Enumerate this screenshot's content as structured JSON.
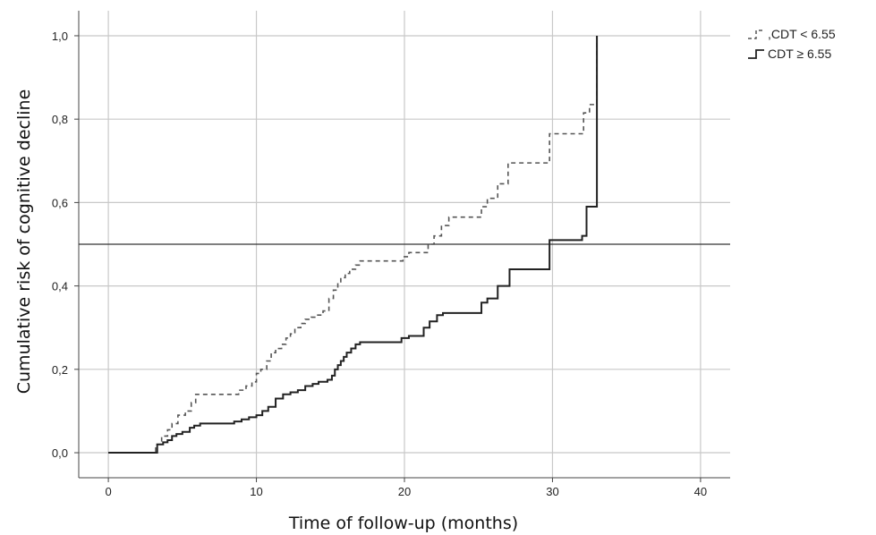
{
  "chart_data": {
    "type": "line",
    "step": true,
    "xlabel": "Time of follow-up (months)",
    "ylabel": "Cumulative risk of cognitive decline",
    "xlim": [
      -2,
      42
    ],
    "ylim": [
      -0.06,
      1.06
    ],
    "x_ticks": [
      0,
      10,
      20,
      30,
      40
    ],
    "x_tick_labels": [
      "0",
      "10",
      "20",
      "30",
      "40"
    ],
    "y_ticks": [
      0.0,
      0.2,
      0.4,
      0.6,
      0.8,
      1.0
    ],
    "y_tick_labels": [
      "0,0",
      "0,2",
      "0,4",
      "0,6",
      "0,8",
      "1,0"
    ],
    "grid": true,
    "reference_line_y": 0.5,
    "legend_position": "top-right",
    "series": [
      {
        "name": ",CDT < 6.55",
        "line_style": "dashed",
        "color": "#555555",
        "x": [
          0,
          3.0,
          3.2,
          3.6,
          4.0,
          4.3,
          4.7,
          5.2,
          5.6,
          5.9,
          8.3,
          8.8,
          9.3,
          9.7,
          10.0,
          10.3,
          10.7,
          11.0,
          11.3,
          11.7,
          12.0,
          12.3,
          12.6,
          13.0,
          13.3,
          13.7,
          14.0,
          14.5,
          14.9,
          15.2,
          15.5,
          15.7,
          16.0,
          16.3,
          16.7,
          17.0,
          17.6,
          19.9,
          20.3,
          21.0,
          21.6,
          22.0,
          22.5,
          23.0,
          25.2,
          25.6,
          26.3,
          27.0,
          29.8,
          30.2,
          32.1,
          32.5,
          33.0,
          33.0
        ],
        "y": [
          0,
          0,
          0.02,
          0.04,
          0.055,
          0.07,
          0.09,
          0.1,
          0.12,
          0.14,
          0.14,
          0.15,
          0.16,
          0.17,
          0.19,
          0.2,
          0.22,
          0.24,
          0.25,
          0.26,
          0.275,
          0.285,
          0.3,
          0.31,
          0.32,
          0.325,
          0.33,
          0.34,
          0.37,
          0.39,
          0.405,
          0.42,
          0.43,
          0.44,
          0.45,
          0.46,
          0.46,
          0.47,
          0.48,
          0.48,
          0.5,
          0.52,
          0.545,
          0.565,
          0.59,
          0.61,
          0.645,
          0.695,
          0.765,
          0.765,
          0.815,
          0.835,
          0.835,
          1.0
        ]
      },
      {
        "name": "CDT ≥ 6.55",
        "line_style": "solid",
        "color": "#222222",
        "x": [
          0,
          3.0,
          3.3,
          3.7,
          4.0,
          4.3,
          4.6,
          5.0,
          5.5,
          5.8,
          6.2,
          8.5,
          9.0,
          9.5,
          10.0,
          10.4,
          10.8,
          11.3,
          11.8,
          12.3,
          12.8,
          13.3,
          13.8,
          14.2,
          14.8,
          15.1,
          15.3,
          15.5,
          15.7,
          15.9,
          16.1,
          16.4,
          16.7,
          17.0,
          17.5,
          19.8,
          20.3,
          21.3,
          21.7,
          22.2,
          22.6,
          25.2,
          25.6,
          26.3,
          27.1,
          29.8,
          32.0,
          32.3,
          33.0,
          33.0
        ],
        "y": [
          0,
          0,
          0.02,
          0.025,
          0.03,
          0.04,
          0.045,
          0.05,
          0.06,
          0.065,
          0.07,
          0.075,
          0.08,
          0.085,
          0.09,
          0.1,
          0.11,
          0.13,
          0.14,
          0.145,
          0.15,
          0.16,
          0.165,
          0.17,
          0.175,
          0.185,
          0.2,
          0.21,
          0.22,
          0.23,
          0.24,
          0.25,
          0.26,
          0.265,
          0.265,
          0.275,
          0.28,
          0.3,
          0.315,
          0.33,
          0.335,
          0.36,
          0.37,
          0.4,
          0.44,
          0.51,
          0.52,
          0.59,
          0.59,
          1.0
        ]
      }
    ]
  }
}
